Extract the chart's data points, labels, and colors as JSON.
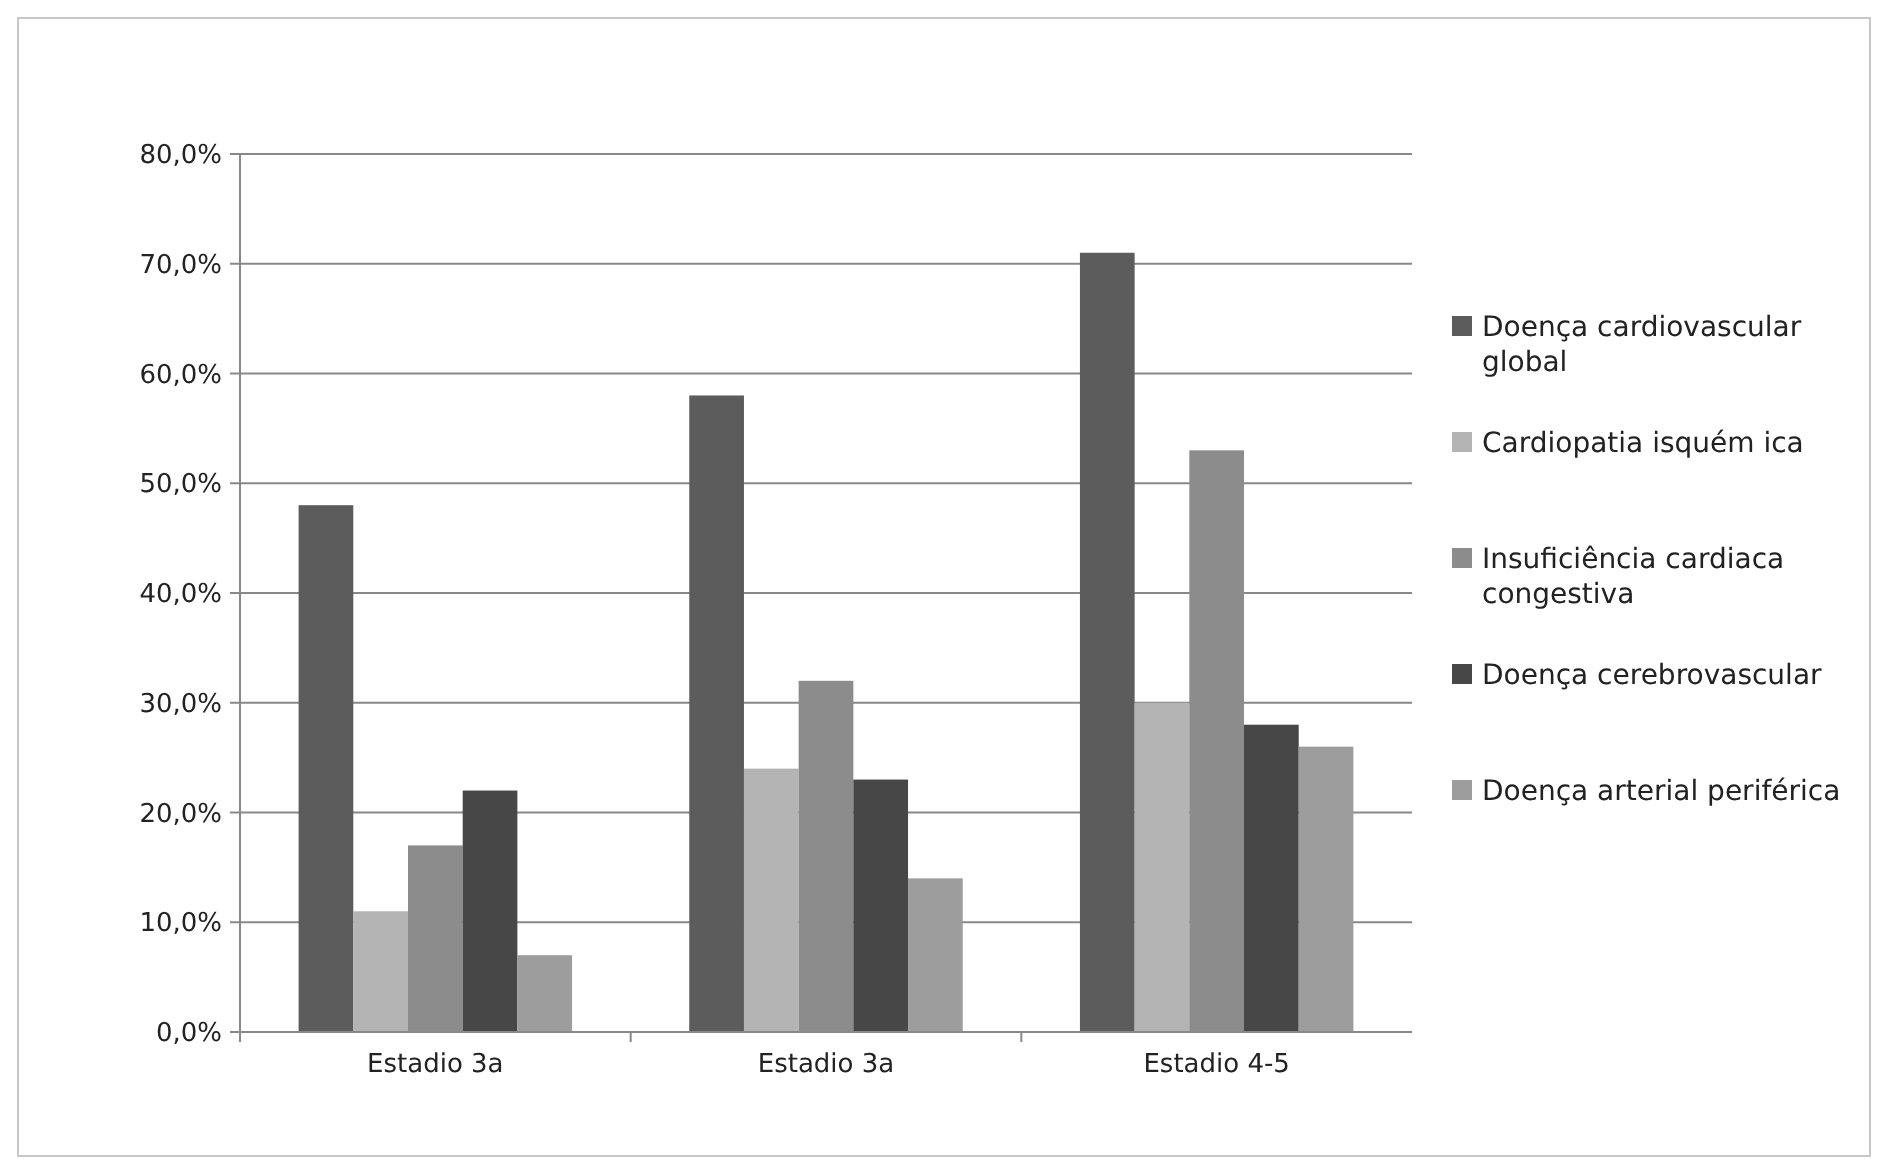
{
  "chart_data": {
    "type": "bar",
    "categories": [
      "Estadio 3a",
      "Estadio 3a",
      "Estadio 4-5"
    ],
    "series": [
      {
        "name": "Doença cardiovascular global",
        "color": "#5c5c5c",
        "values": [
          48,
          58,
          71
        ]
      },
      {
        "name": "Cardiopatia isquém ica",
        "color": "#b4b4b4",
        "values": [
          11,
          24,
          30
        ]
      },
      {
        "name": "Insuficiência cardiaca congestiva",
        "color": "#8c8c8c",
        "values": [
          17,
          32,
          53
        ]
      },
      {
        "name": "Doença cerebrovascular",
        "color": "#474747",
        "values": [
          22,
          23,
          28
        ]
      },
      {
        "name": "Doença arterial periférica",
        "color": "#9d9d9d",
        "values": [
          7,
          14,
          26
        ]
      }
    ],
    "ylim": [
      0,
      80
    ],
    "yticks": [
      {
        "value": 0,
        "label": "0,0%"
      },
      {
        "value": 10,
        "label": "10,0%"
      },
      {
        "value": 20,
        "label": "20,0%"
      },
      {
        "value": 30,
        "label": "30,0%"
      },
      {
        "value": 40,
        "label": "40,0%"
      },
      {
        "value": 50,
        "label": "50,0%"
      },
      {
        "value": 60,
        "label": "60,0%"
      },
      {
        "value": 70,
        "label": "70,0%"
      },
      {
        "value": 80,
        "label": "80,0%"
      }
    ],
    "grid": "y",
    "legend": "right"
  }
}
